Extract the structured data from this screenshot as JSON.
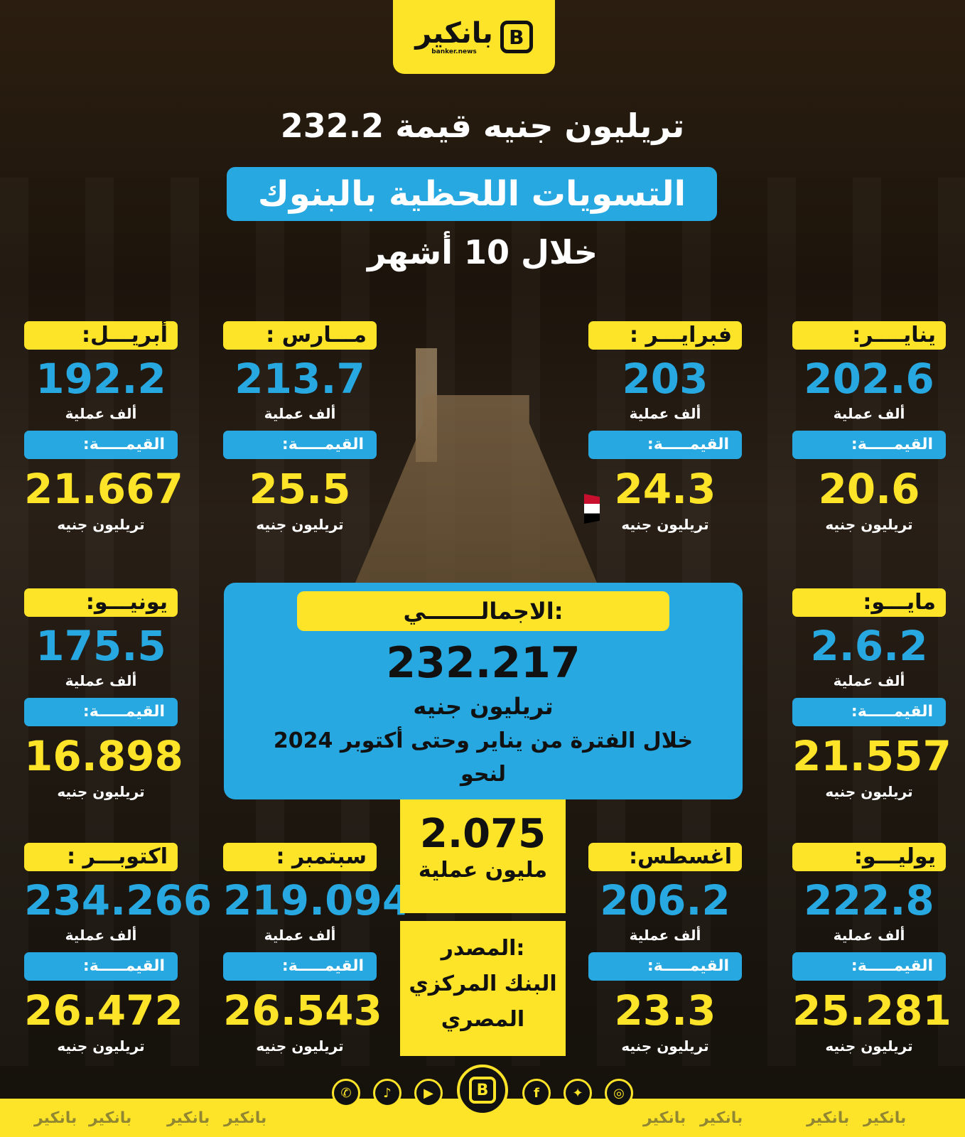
{
  "brand": {
    "name": "بانكير",
    "domain": "banker.news",
    "mark": "B"
  },
  "header": {
    "title_line1": "232.2 تريليون جنيه قيمة",
    "title_line2": "التسويات اللحظية بالبنوك",
    "title_line3": "خلال 10 أشهر"
  },
  "units": {
    "count": "ألف عملية",
    "value_label": "القيمـــــة:",
    "value": "تريليون جنيه"
  },
  "months": [
    {
      "name": "ينايــــر:",
      "count": "202.6",
      "value": "20.6"
    },
    {
      "name": "فبرايـــر :",
      "count": "203",
      "value": "24.3"
    },
    {
      "name": "مـــارس :",
      "count": "213.7",
      "value": "25.5"
    },
    {
      "name": "أبريـــل:",
      "count": "192.2",
      "value": "21.667"
    },
    {
      "name": "مايـــو:",
      "count": "2.6.2",
      "value": "21.557"
    },
    {
      "name": "يونيـــو:",
      "count": "175.5",
      "value": "16.898"
    },
    {
      "name": "يوليـــو:",
      "count": "222.8",
      "value": "25.281"
    },
    {
      "name": "اغسطس:",
      "count": "206.2",
      "value": "23.3"
    },
    {
      "name": "سبتمبر :",
      "count": "219.094",
      "value": "26.543"
    },
    {
      "name": "اكتوبـــر :",
      "count": "234.266",
      "value": "26.472"
    }
  ],
  "total": {
    "label": "الاجمالـــــــي:",
    "value": "232.217",
    "unit": "تريليون جنيه",
    "period": "خلال الفترة من يناير وحتى أكتوبر 2024",
    "about": "لنحو"
  },
  "operations": {
    "value": "2.075",
    "unit": "مليون عملية"
  },
  "source": {
    "line1": "المصدر:",
    "line2": "البنك المركزي",
    "line3": "المصري"
  },
  "social": [
    "whatsapp-icon",
    "tiktok-icon",
    "youtube-icon",
    "facebook-icon",
    "twitter-icon",
    "instagram-icon"
  ],
  "colors": {
    "yellow": "#fde428",
    "blue": "#27a8e0",
    "dark": "#111111"
  }
}
